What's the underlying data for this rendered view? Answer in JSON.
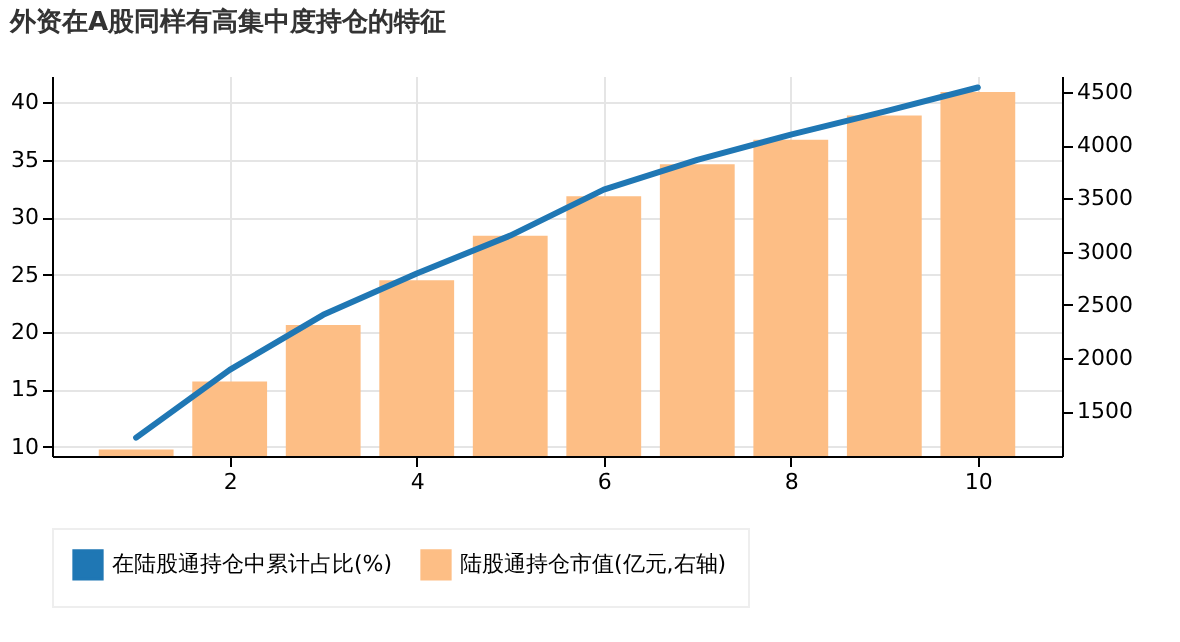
{
  "chart_data": {
    "type": "bar",
    "title": "外资在A股同样有高集中度持仓的特征",
    "x": [
      1,
      2,
      3,
      4,
      5,
      6,
      7,
      8,
      9,
      10
    ],
    "series": [
      {
        "name": "在陆股通持仓中累计占比(%)",
        "type": "line",
        "color": "#1f77b4",
        "values": [
          10.8,
          16.7,
          21.5,
          25.1,
          28.4,
          32.4,
          35.0,
          37.2,
          39.2,
          41.3
        ]
      },
      {
        "name": "陆股通持仓市值(亿元,右轴)",
        "type": "bar",
        "axis": "y2",
        "color": "#fdbe85",
        "values": [
          1140,
          1780,
          2310,
          2730,
          3150,
          3520,
          3820,
          4050,
          4280,
          4500
        ]
      }
    ],
    "xlim": [
      0.1,
      10.9
    ],
    "xticks": [
      2,
      4,
      6,
      8,
      10
    ],
    "ylim": [
      9.2,
      42.3
    ],
    "yticks": [
      10,
      15,
      20,
      25,
      30,
      35,
      40
    ],
    "y2lim": [
      1080,
      4650
    ],
    "y2ticks": [
      1500,
      2000,
      2500,
      3000,
      3500,
      4000,
      4500
    ],
    "grid": true,
    "legend": "bottom"
  }
}
